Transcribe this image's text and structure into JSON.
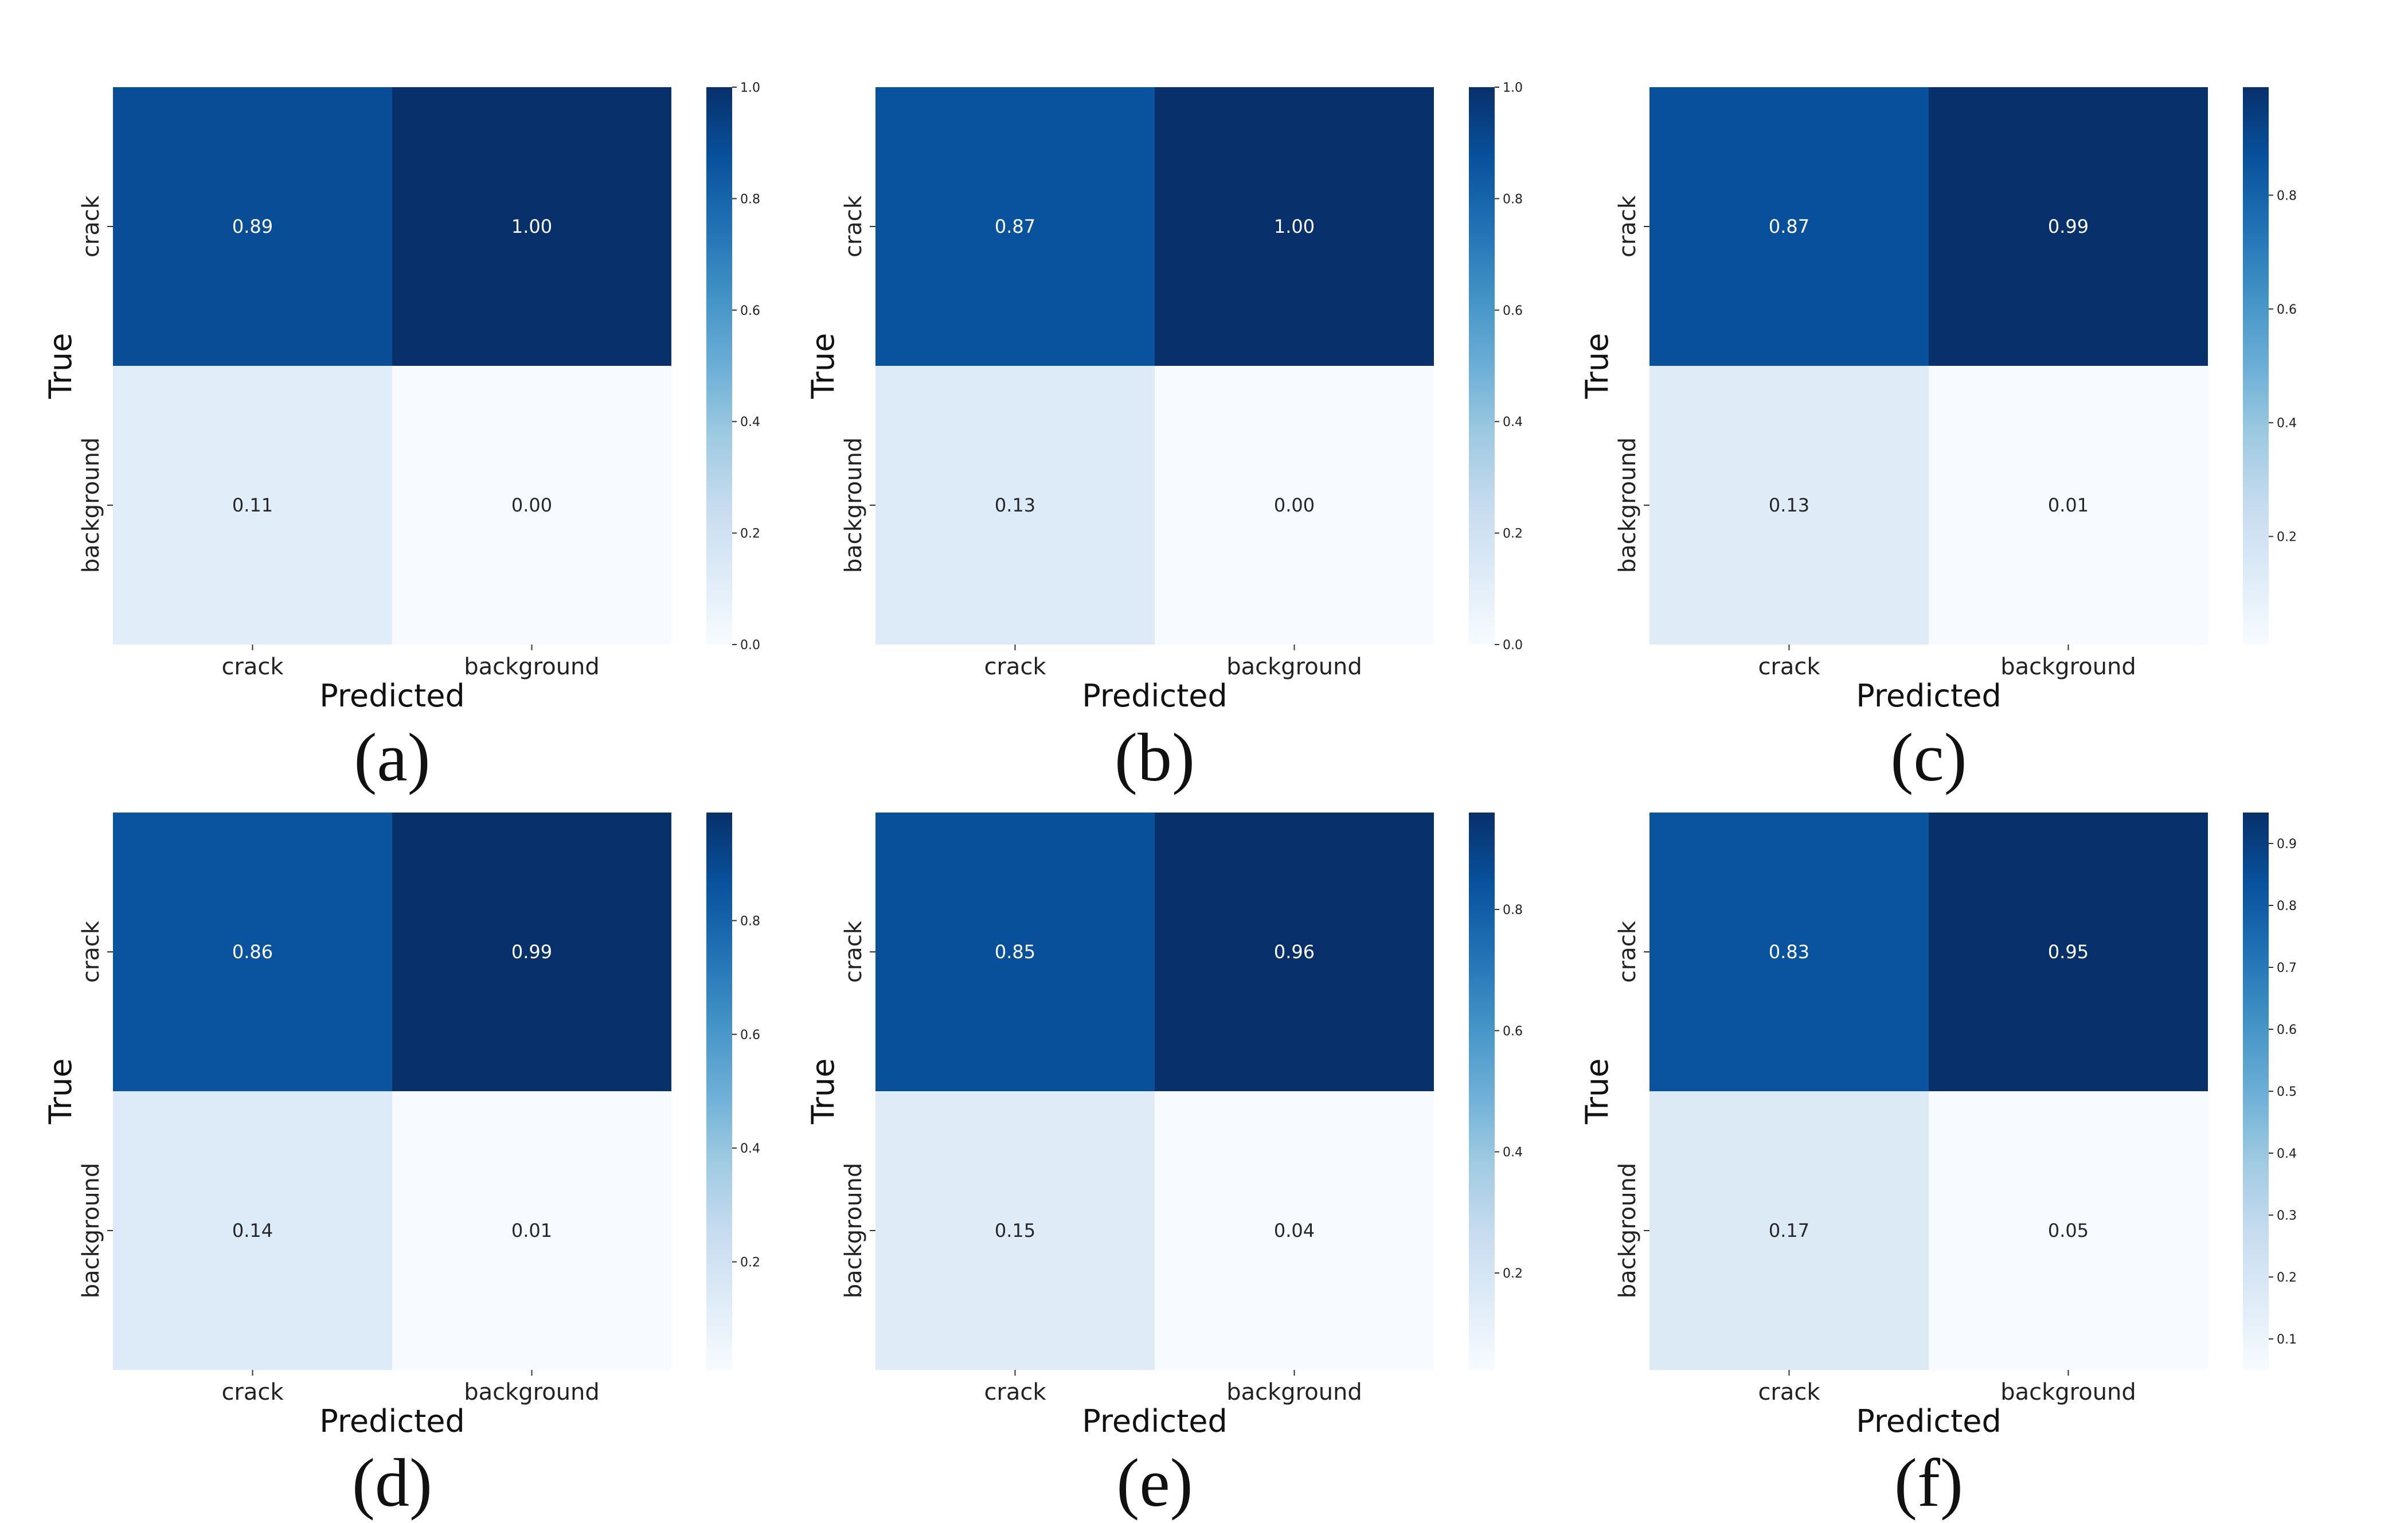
{
  "colors": {
    "low": "#f7fbff",
    "high": "#08306b"
  },
  "chart_data": [
    {
      "type": "heatmap",
      "panel_label": "(a)",
      "x_categories": [
        "crack",
        "background"
      ],
      "y_categories": [
        "crack",
        "background"
      ],
      "values": [
        [
          0.89,
          1.0
        ],
        [
          0.11,
          0.0
        ]
      ],
      "xlabel": "Predicted",
      "ylabel": "True",
      "colorbar": {
        "vmin": 0.0,
        "vmax": 1.0,
        "ticks": [
          "0.0",
          "0.2",
          "0.4",
          "0.6",
          "0.8",
          "1.0"
        ]
      }
    },
    {
      "type": "heatmap",
      "panel_label": "(b)",
      "x_categories": [
        "crack",
        "background"
      ],
      "y_categories": [
        "crack",
        "background"
      ],
      "values": [
        [
          0.87,
          1.0
        ],
        [
          0.13,
          0.0
        ]
      ],
      "xlabel": "Predicted",
      "ylabel": "True",
      "colorbar": {
        "vmin": 0.0,
        "vmax": 1.0,
        "ticks": [
          "0.0",
          "0.2",
          "0.4",
          "0.6",
          "0.8",
          "1.0"
        ]
      }
    },
    {
      "type": "heatmap",
      "panel_label": "(c)",
      "x_categories": [
        "crack",
        "background"
      ],
      "y_categories": [
        "crack",
        "background"
      ],
      "values": [
        [
          0.87,
          0.99
        ],
        [
          0.13,
          0.01
        ]
      ],
      "xlabel": "Predicted",
      "ylabel": "True",
      "colorbar": {
        "vmin": 0.01,
        "vmax": 0.99,
        "ticks": [
          "0.2",
          "0.4",
          "0.6",
          "0.8"
        ]
      }
    },
    {
      "type": "heatmap",
      "panel_label": "(d)",
      "x_categories": [
        "crack",
        "background"
      ],
      "y_categories": [
        "crack",
        "background"
      ],
      "values": [
        [
          0.86,
          0.99
        ],
        [
          0.14,
          0.01
        ]
      ],
      "xlabel": "Predicted",
      "ylabel": "True",
      "colorbar": {
        "vmin": 0.01,
        "vmax": 0.99,
        "ticks": [
          "0.2",
          "0.4",
          "0.6",
          "0.8"
        ]
      }
    },
    {
      "type": "heatmap",
      "panel_label": "(e)",
      "x_categories": [
        "crack",
        "background"
      ],
      "y_categories": [
        "crack",
        "background"
      ],
      "values": [
        [
          0.85,
          0.96
        ],
        [
          0.15,
          0.04
        ]
      ],
      "xlabel": "Predicted",
      "ylabel": "True",
      "colorbar": {
        "vmin": 0.04,
        "vmax": 0.96,
        "ticks": [
          "0.2",
          "0.4",
          "0.6",
          "0.8"
        ]
      }
    },
    {
      "type": "heatmap",
      "panel_label": "(f)",
      "x_categories": [
        "crack",
        "background"
      ],
      "y_categories": [
        "crack",
        "background"
      ],
      "values": [
        [
          0.83,
          0.95
        ],
        [
          0.17,
          0.05
        ]
      ],
      "xlabel": "Predicted",
      "ylabel": "True",
      "colorbar": {
        "vmin": 0.05,
        "vmax": 0.95,
        "ticks": [
          "0.1",
          "0.2",
          "0.3",
          "0.4",
          "0.5",
          "0.6",
          "0.7",
          "0.8",
          "0.9"
        ]
      }
    }
  ]
}
